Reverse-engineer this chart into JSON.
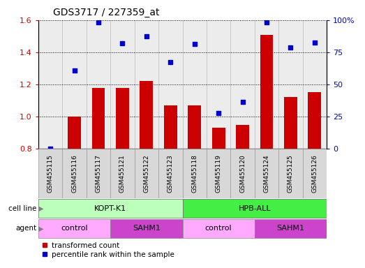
{
  "title": "GDS3717 / 227359_at",
  "samples": [
    "GSM455115",
    "GSM455116",
    "GSM455117",
    "GSM455121",
    "GSM455122",
    "GSM455123",
    "GSM455118",
    "GSM455119",
    "GSM455120",
    "GSM455124",
    "GSM455125",
    "GSM455126"
  ],
  "bar_values": [
    0.8,
    1.0,
    1.18,
    1.18,
    1.22,
    1.07,
    1.07,
    0.93,
    0.95,
    1.51,
    1.12,
    1.15
  ],
  "scatter_values_pct": [
    0.0,
    61.0,
    98.0,
    82.0,
    87.5,
    67.5,
    81.5,
    27.5,
    36.5,
    98.5,
    78.5,
    82.5
  ],
  "bar_color": "#cc0000",
  "scatter_color": "#0000cc",
  "ylim_left": [
    0.8,
    1.6
  ],
  "ylim_right": [
    0,
    100
  ],
  "yticks_left": [
    0.8,
    1.0,
    1.2,
    1.4,
    1.6
  ],
  "yticks_right": [
    0,
    25,
    50,
    75,
    100
  ],
  "ytick_labels_right": [
    "0",
    "25",
    "50",
    "75",
    "100%"
  ],
  "cell_line_labels": [
    "KOPT-K1",
    "HPB-ALL"
  ],
  "cell_line_colors": [
    "#bbffbb",
    "#44ee44"
  ],
  "agent_colors_light": "#ffaaff",
  "agent_colors_dark": "#cc44cc",
  "legend_bar_label": "transformed count",
  "legend_scatter_label": "percentile rank within the sample",
  "bar_width": 0.55
}
